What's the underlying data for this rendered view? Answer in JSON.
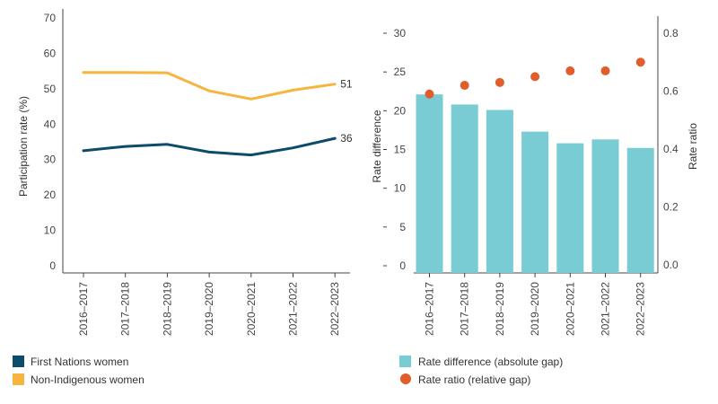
{
  "chart_data": [
    {
      "type": "line",
      "ylabel": "Participation rate (%)",
      "ylim": [
        0,
        70
      ],
      "yticks": [
        0,
        10,
        20,
        30,
        40,
        50,
        60,
        70
      ],
      "categories": [
        "2016–2017",
        "2017–2018",
        "2018–2019",
        "2019–2020",
        "2020–2021",
        "2021–2022",
        "2022–2023"
      ],
      "series": [
        {
          "name": "First Nations women",
          "color": "#0d4b6b",
          "values": [
            32.5,
            33.7,
            34.3,
            32.1,
            31.3,
            33.3,
            36
          ],
          "end_label": "36"
        },
        {
          "name": "Non-Indigenous women",
          "color": "#f6b441",
          "values": [
            54.6,
            54.6,
            54.5,
            49.4,
            47.1,
            49.6,
            51.3
          ],
          "end_label": "51"
        }
      ],
      "grid": false,
      "legend": "bottom-left"
    },
    {
      "type": "bar",
      "ylabel": "Rate difference",
      "y2label": "Rate ratio",
      "ylim": [
        0,
        30
      ],
      "yticks": [
        0,
        5,
        10,
        15,
        20,
        25,
        30
      ],
      "y2lim": [
        0,
        0.8
      ],
      "y2ticks": [
        0.0,
        0.2,
        0.4,
        0.6,
        0.8
      ],
      "categories": [
        "2016–2017",
        "2017–2018",
        "2018–2019",
        "2019–2020",
        "2020–2021",
        "2021–2022",
        "2022–2023"
      ],
      "series": [
        {
          "name": "Rate difference (absolute gap)",
          "kind": "bar",
          "axis": "left",
          "color": "#79ccd4",
          "values": [
            22.1,
            20.8,
            20.1,
            17.3,
            15.8,
            16.3,
            15.2
          ]
        },
        {
          "name": "Rate ratio (relative gap)",
          "kind": "scatter",
          "axis": "right",
          "color": "#e05e2b",
          "values": [
            0.59,
            0.62,
            0.63,
            0.65,
            0.67,
            0.67,
            0.7
          ]
        }
      ],
      "grid": false,
      "legend": "bottom-center"
    }
  ]
}
